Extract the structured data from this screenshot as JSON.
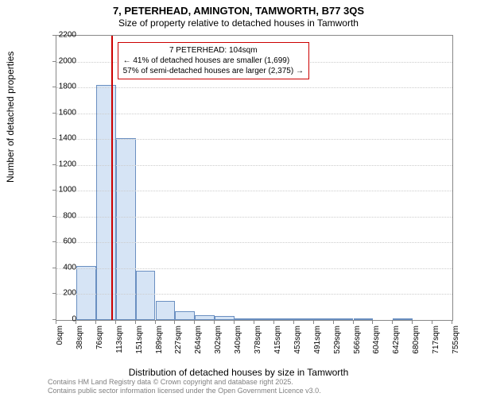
{
  "title_line1": "7, PETERHEAD, AMINGTON, TAMWORTH, B77 3QS",
  "title_line2": "Size of property relative to detached houses in Tamworth",
  "y_axis_label": "Number of detached properties",
  "x_axis_label": "Distribution of detached houses by size in Tamworth",
  "footer_line1": "Contains HM Land Registry data © Crown copyright and database right 2025.",
  "footer_line2": "Contains public sector information licensed under the Open Government Licence v3.0.",
  "chart": {
    "type": "histogram",
    "bar_fill": "#d6e4f5",
    "bar_border": "#6a8fc1",
    "marker_color": "#c00",
    "background": "#ffffff",
    "grid_color": "#cccccc",
    "ylim": [
      0,
      2200
    ],
    "ytick_step": 200,
    "x_tick_labels": [
      "0sqm",
      "38sqm",
      "76sqm",
      "113sqm",
      "151sqm",
      "189sqm",
      "227sqm",
      "264sqm",
      "302sqm",
      "340sqm",
      "378sqm",
      "415sqm",
      "453sqm",
      "491sqm",
      "529sqm",
      "566sqm",
      "604sqm",
      "642sqm",
      "680sqm",
      "717sqm",
      "755sqm"
    ],
    "bar_values": [
      0,
      420,
      1820,
      1410,
      380,
      150,
      70,
      40,
      30,
      15,
      10,
      10,
      5,
      5,
      5,
      5,
      0,
      5,
      0,
      0
    ],
    "marker_x_sqm": 104,
    "annotation": {
      "title": "7 PETERHEAD: 104sqm",
      "line1": "← 41% of detached houses are smaller (1,699)",
      "line2": "57% of semi-detached houses are larger (2,375) →"
    }
  }
}
